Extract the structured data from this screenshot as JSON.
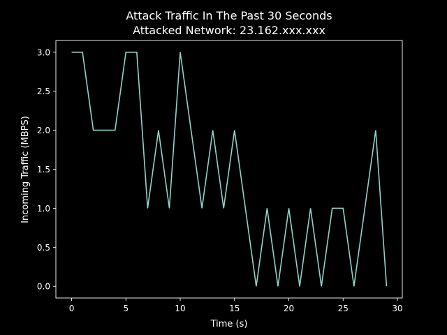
{
  "chart_data": {
    "type": "line",
    "title": "Attack Traffic In The Past 30 Seconds",
    "subtitle": "Attacked Network: 23.162.xxx.xxx",
    "xlabel": "Time (s)",
    "ylabel": "Incoming Traffic (MBPS)",
    "xlim": [
      -1.45,
      30.45
    ],
    "ylim": [
      -0.15,
      3.15
    ],
    "xticks": [
      0,
      5,
      10,
      15,
      20,
      25,
      30
    ],
    "xtick_labels": [
      "0",
      "5",
      "10",
      "15",
      "20",
      "25",
      "30"
    ],
    "yticks": [
      0.0,
      0.5,
      1.0,
      1.5,
      2.0,
      2.5,
      3.0
    ],
    "ytick_labels": [
      "0.0",
      "0.5",
      "1.0",
      "1.5",
      "2.0",
      "2.5",
      "3.0"
    ],
    "grid": false,
    "series": [
      {
        "color": "#8dd3c7",
        "x": [
          0,
          1,
          2,
          3,
          4,
          5,
          6,
          7,
          8,
          9,
          10,
          11,
          12,
          13,
          14,
          15,
          16,
          17,
          18,
          19,
          20,
          21,
          22,
          23,
          24,
          25,
          26,
          27,
          28,
          29
        ],
        "y": [
          3,
          3,
          2,
          2,
          2,
          3,
          3,
          1,
          2,
          1,
          3,
          2,
          1,
          2,
          1,
          2,
          1,
          0,
          1,
          0,
          1,
          0,
          1,
          0,
          1,
          1,
          0,
          1,
          2,
          0
        ]
      }
    ]
  }
}
